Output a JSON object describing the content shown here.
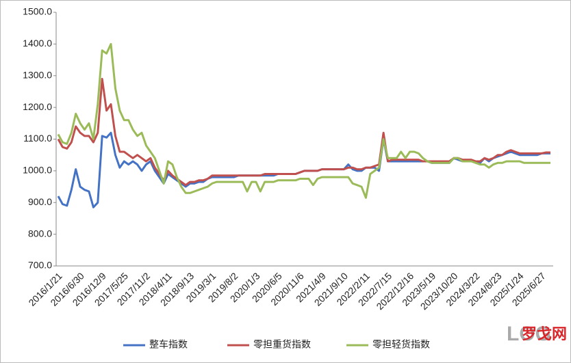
{
  "chart_data": {
    "type": "line",
    "categories": [
      "2016/1/21",
      null,
      null,
      null,
      null,
      "2016/6/30",
      null,
      null,
      null,
      null,
      "2016/12/9",
      null,
      null,
      null,
      null,
      "2017/5/25",
      null,
      null,
      null,
      null,
      "2017/11/2",
      null,
      null,
      null,
      null,
      "2018/4/11",
      null,
      null,
      null,
      null,
      "2018/9/13",
      null,
      null,
      null,
      null,
      "2019/3/1",
      null,
      null,
      null,
      null,
      "2019/8/2",
      null,
      null,
      null,
      null,
      "2020/1/3",
      null,
      null,
      null,
      null,
      "2020/6/5",
      null,
      null,
      null,
      null,
      "2020/11/6",
      null,
      null,
      null,
      null,
      "2021/4/9",
      null,
      null,
      null,
      null,
      "2021/9/10",
      null,
      null,
      null,
      null,
      "2022/2/11",
      null,
      null,
      null,
      null,
      "2022/7/15",
      null,
      null,
      null,
      null,
      "2022/12/16",
      null,
      null,
      null,
      null,
      "2023/5/19",
      null,
      null,
      null,
      null,
      "2023/10/20",
      null,
      null,
      null,
      null,
      "2024/3/22",
      null,
      null,
      null,
      null,
      "2024/8/23",
      null,
      null,
      null,
      null,
      "2025/1/24",
      null,
      null,
      null,
      null,
      "2025/6/27",
      null,
      null
    ],
    "series": [
      {
        "name": "整车指数",
        "color": "#4472c4",
        "values": [
          920,
          895,
          890,
          940,
          1005,
          950,
          940,
          935,
          885,
          900,
          1110,
          1105,
          1120,
          1050,
          1010,
          1030,
          1020,
          1030,
          1020,
          1000,
          1020,
          1030,
          1000,
          980,
          960,
          990,
          980,
          970,
          960,
          950,
          960,
          960,
          965,
          965,
          975,
          980,
          980,
          980,
          980,
          980,
          980,
          985,
          985,
          985,
          985,
          985,
          985,
          985,
          985,
          985,
          990,
          990,
          990,
          990,
          990,
          995,
          1000,
          1000,
          1000,
          1000,
          1005,
          1005,
          1005,
          1005,
          1005,
          1005,
          1020,
          1005,
          1000,
          1000,
          1010,
          1010,
          1010,
          1000,
          1100,
          1030,
          1030,
          1030,
          1030,
          1030,
          1030,
          1030,
          1030,
          1030,
          1030,
          1025,
          1025,
          1025,
          1025,
          1025,
          1040,
          1035,
          1030,
          1030,
          1030,
          1030,
          1025,
          1040,
          1030,
          1040,
          1045,
          1050,
          1055,
          1060,
          1055,
          1050,
          1050,
          1050,
          1050,
          1050,
          1055,
          1055,
          1055
        ]
      },
      {
        "name": "零担重货指数",
        "color": "#c0504d",
        "values": [
          1100,
          1075,
          1070,
          1090,
          1140,
          1120,
          1110,
          1110,
          1090,
          1120,
          1290,
          1190,
          1210,
          1110,
          1060,
          1060,
          1050,
          1040,
          1050,
          1040,
          1030,
          1040,
          1010,
          990,
          970,
          1000,
          985,
          975,
          965,
          955,
          965,
          965,
          970,
          970,
          975,
          985,
          985,
          985,
          985,
          985,
          985,
          985,
          985,
          985,
          985,
          985,
          985,
          990,
          990,
          990,
          990,
          990,
          990,
          990,
          990,
          995,
          1000,
          1000,
          1000,
          1000,
          1005,
          1005,
          1005,
          1005,
          1005,
          1005,
          1010,
          1010,
          1005,
          1005,
          1010,
          1010,
          1015,
          1020,
          1120,
          1030,
          1035,
          1035,
          1035,
          1035,
          1035,
          1035,
          1035,
          1030,
          1030,
          1030,
          1030,
          1030,
          1030,
          1030,
          1040,
          1040,
          1035,
          1035,
          1035,
          1030,
          1030,
          1040,
          1035,
          1040,
          1050,
          1050,
          1060,
          1065,
          1060,
          1055,
          1055,
          1055,
          1055,
          1055,
          1055,
          1058,
          1058
        ]
      },
      {
        "name": "零担轻货指数",
        "color": "#9bbb59",
        "values": [
          1115,
          1090,
          1085,
          1120,
          1180,
          1150,
          1130,
          1150,
          1100,
          1210,
          1380,
          1370,
          1400,
          1260,
          1190,
          1160,
          1160,
          1130,
          1110,
          1120,
          1080,
          1060,
          1040,
          1000,
          960,
          1030,
          1020,
          980,
          950,
          930,
          930,
          935,
          940,
          945,
          950,
          960,
          965,
          965,
          965,
          965,
          965,
          965,
          965,
          935,
          965,
          965,
          935,
          965,
          965,
          965,
          970,
          970,
          970,
          970,
          970,
          975,
          975,
          975,
          955,
          975,
          980,
          980,
          980,
          980,
          980,
          980,
          980,
          960,
          955,
          950,
          915,
          990,
          1000,
          1010,
          1100,
          1040,
          1040,
          1040,
          1060,
          1040,
          1060,
          1060,
          1055,
          1040,
          1030,
          1025,
          1025,
          1025,
          1025,
          1025,
          1040,
          1040,
          1030,
          1030,
          1030,
          1025,
          1020,
          1020,
          1010,
          1020,
          1025,
          1025,
          1030,
          1030,
          1030,
          1030,
          1025,
          1025,
          1025,
          1025,
          1025,
          1025,
          1025
        ]
      }
    ],
    "ylim": [
      700,
      1500
    ],
    "yticks": [
      {
        "value": 700,
        "label": "700.0"
      },
      {
        "value": 800,
        "label": "800.0"
      },
      {
        "value": 900,
        "label": "900.0"
      },
      {
        "value": 1000,
        "label": "1000.0"
      },
      {
        "value": 1100,
        "label": "1100.0"
      },
      {
        "value": 1200,
        "label": "1200.0"
      },
      {
        "value": 1300,
        "label": "1300.0"
      },
      {
        "value": 1400,
        "label": "1400.0"
      },
      {
        "value": 1500,
        "label": "1500.0"
      }
    ],
    "grid": false,
    "legend": "bottom"
  },
  "watermark": {
    "logo": "LOG",
    "name": "罗戈网"
  }
}
